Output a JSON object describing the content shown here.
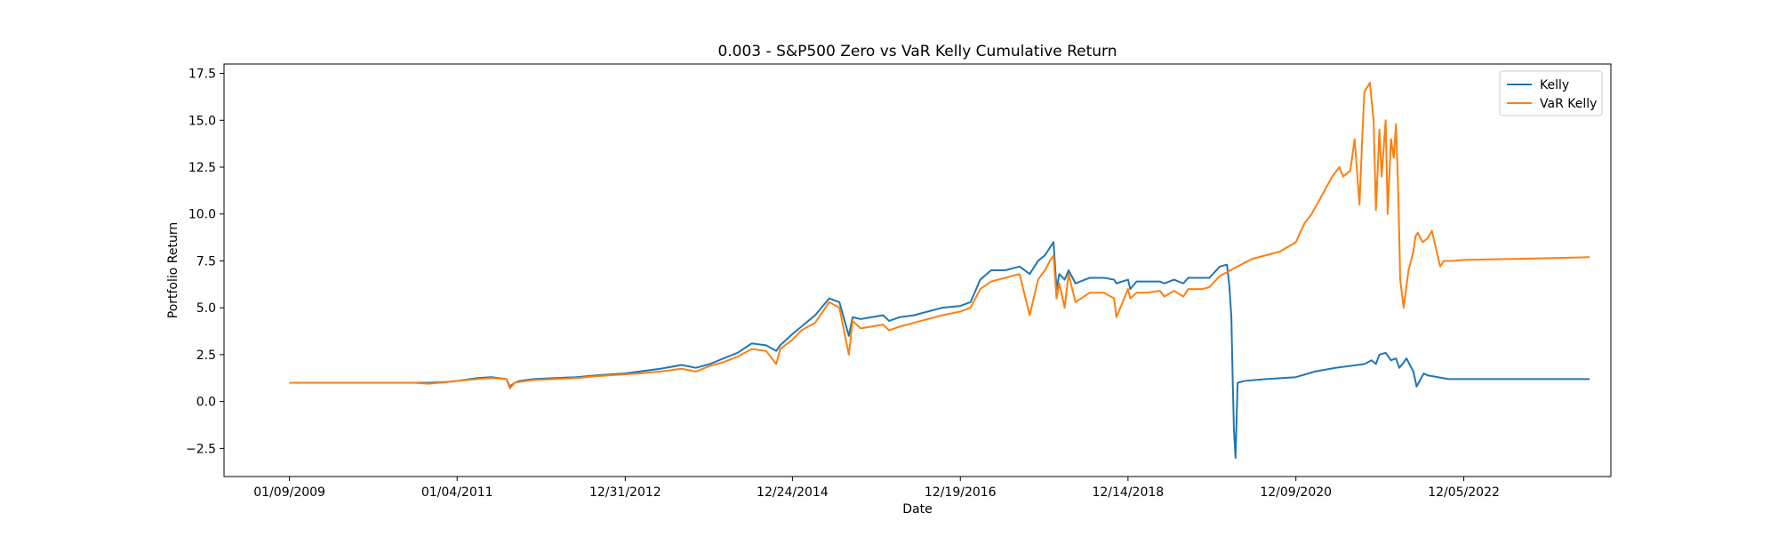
{
  "chart_data": {
    "type": "line",
    "title": "0.003 - S&P500 Zero vs VaR Kelly Cumulative Return",
    "xlabel": "Date",
    "ylabel": "Portfolio Return",
    "x_ticks": [
      "01/09/2009",
      "01/04/2011",
      "12/31/2012",
      "12/24/2014",
      "12/19/2016",
      "12/14/2018",
      "12/09/2020",
      "12/05/2022"
    ],
    "y_ticks": [
      "−2.5",
      "0.0",
      "2.5",
      "5.0",
      "7.5",
      "10.0",
      "12.5",
      "15.0",
      "17.5"
    ],
    "ylim": [
      -4.0,
      18.0
    ],
    "xlim": [
      "2008-04-01",
      "2024-09-01"
    ],
    "grid": false,
    "legend_position": "upper right",
    "series": [
      {
        "name": "Kelly",
        "color": "#1f77b4",
        "x": [
          "2009-01-09",
          "2009-09-01",
          "2010-05-01",
          "2010-07-01",
          "2010-09-01",
          "2010-12-01",
          "2011-01-04",
          "2011-04-01",
          "2011-06-01",
          "2011-08-05",
          "2011-08-20",
          "2011-09-10",
          "2011-10-01",
          "2011-12-01",
          "2012-03-01",
          "2012-06-01",
          "2012-09-01",
          "2012-12-31",
          "2013-03-01",
          "2013-06-01",
          "2013-09-01",
          "2013-11-01",
          "2014-01-01",
          "2014-03-01",
          "2014-05-01",
          "2014-07-01",
          "2014-09-01",
          "2014-10-15",
          "2014-11-01",
          "2014-12-24",
          "2015-02-01",
          "2015-04-01",
          "2015-06-01",
          "2015-07-15",
          "2015-08-25",
          "2015-09-10",
          "2015-10-15",
          "2015-12-01",
          "2016-01-20",
          "2016-02-15",
          "2016-04-01",
          "2016-06-01",
          "2016-08-01",
          "2016-10-01",
          "2016-12-19",
          "2017-02-01",
          "2017-03-15",
          "2017-05-01",
          "2017-07-01",
          "2017-09-01",
          "2017-10-15",
          "2017-11-20",
          "2017-12-20",
          "2018-01-10",
          "2018-01-26",
          "2018-02-08",
          "2018-02-20",
          "2018-03-15",
          "2018-04-01",
          "2018-05-01",
          "2018-07-01",
          "2018-09-01",
          "2018-10-15",
          "2018-10-25",
          "2018-12-14",
          "2018-12-24",
          "2019-01-20",
          "2019-03-01",
          "2019-05-01",
          "2019-05-20",
          "2019-07-01",
          "2019-08-10",
          "2019-09-01",
          "2019-11-01",
          "2019-12-01",
          "2020-01-15",
          "2020-02-15",
          "2020-02-25",
          "2020-03-05",
          "2020-03-10",
          "2020-03-16",
          "2020-03-23",
          "2020-04-01",
          "2020-05-01",
          "2020-08-01",
          "2020-12-09",
          "2021-03-01",
          "2021-06-01",
          "2021-08-01",
          "2021-10-01",
          "2021-11-01",
          "2021-11-20",
          "2021-12-05",
          "2022-01-01",
          "2022-01-24",
          "2022-02-15",
          "2022-03-01",
          "2022-03-15",
          "2022-04-01",
          "2022-05-01",
          "2022-05-15",
          "2022-06-15",
          "2022-07-01",
          "2022-08-15",
          "2022-10-01",
          "2022-12-05",
          "2023-06-01",
          "2024-01-01",
          "2024-06-01"
        ],
        "y": [
          1.0,
          1.0,
          1.0,
          1.0,
          1.0,
          1.05,
          1.1,
          1.25,
          1.3,
          1.2,
          0.8,
          1.0,
          1.1,
          1.2,
          1.25,
          1.3,
          1.4,
          1.5,
          1.6,
          1.75,
          1.95,
          1.8,
          2.0,
          2.3,
          2.6,
          3.1,
          3.0,
          2.7,
          3.0,
          3.6,
          4.0,
          4.6,
          5.5,
          5.3,
          3.5,
          4.5,
          4.4,
          4.5,
          4.6,
          4.3,
          4.5,
          4.6,
          4.8,
          5.0,
          5.1,
          5.3,
          6.5,
          7.0,
          7.0,
          7.2,
          6.8,
          7.5,
          7.8,
          8.2,
          8.5,
          6.0,
          6.8,
          6.5,
          7.0,
          6.3,
          6.6,
          6.6,
          6.5,
          6.3,
          6.5,
          6.0,
          6.4,
          6.4,
          6.4,
          6.3,
          6.5,
          6.3,
          6.6,
          6.6,
          6.6,
          7.2,
          7.3,
          6.2,
          4.5,
          1.5,
          -1.5,
          -3.0,
          1.0,
          1.1,
          1.2,
          1.3,
          1.6,
          1.8,
          1.9,
          2.0,
          2.2,
          2.0,
          2.5,
          2.6,
          2.2,
          2.3,
          1.8,
          2.0,
          2.3,
          1.6,
          0.8,
          1.5,
          1.4,
          1.3,
          1.2,
          1.2,
          1.2,
          1.2,
          1.2
        ]
      },
      {
        "name": "VaR Kelly",
        "color": "#ff7f0e",
        "x": [
          "2009-01-09",
          "2009-09-01",
          "2010-05-01",
          "2010-07-01",
          "2010-09-01",
          "2010-12-01",
          "2011-01-04",
          "2011-04-01",
          "2011-06-01",
          "2011-08-05",
          "2011-08-20",
          "2011-09-10",
          "2011-10-01",
          "2011-12-01",
          "2012-03-01",
          "2012-06-01",
          "2012-09-01",
          "2012-12-31",
          "2013-03-01",
          "2013-06-01",
          "2013-09-01",
          "2013-11-01",
          "2014-01-01",
          "2014-03-01",
          "2014-05-01",
          "2014-07-01",
          "2014-09-01",
          "2014-10-15",
          "2014-11-01",
          "2014-12-24",
          "2015-02-01",
          "2015-04-01",
          "2015-06-01",
          "2015-07-15",
          "2015-08-25",
          "2015-09-10",
          "2015-10-15",
          "2015-12-01",
          "2016-01-20",
          "2016-02-15",
          "2016-04-01",
          "2016-06-01",
          "2016-08-01",
          "2016-10-01",
          "2016-12-19",
          "2017-02-01",
          "2017-03-15",
          "2017-05-01",
          "2017-07-01",
          "2017-09-01",
          "2017-10-15",
          "2017-11-20",
          "2017-12-20",
          "2018-01-10",
          "2018-01-26",
          "2018-02-08",
          "2018-02-20",
          "2018-03-15",
          "2018-04-01",
          "2018-05-01",
          "2018-07-01",
          "2018-09-01",
          "2018-10-15",
          "2018-10-25",
          "2018-12-14",
          "2018-12-24",
          "2019-01-20",
          "2019-03-01",
          "2019-05-01",
          "2019-05-20",
          "2019-07-01",
          "2019-08-10",
          "2019-09-01",
          "2019-11-01",
          "2019-12-01",
          "2020-01-15",
          "2020-02-15",
          "2020-03-01",
          "2020-04-01",
          "2020-05-01",
          "2020-06-01",
          "2020-07-01",
          "2020-08-01",
          "2020-09-01",
          "2020-10-01",
          "2020-12-09",
          "2021-01-15",
          "2021-02-15",
          "2021-04-01",
          "2021-05-15",
          "2021-06-15",
          "2021-07-01",
          "2021-08-01",
          "2021-08-20",
          "2021-09-10",
          "2021-09-20",
          "2021-10-01",
          "2021-10-25",
          "2021-11-10",
          "2021-11-20",
          "2021-12-05",
          "2021-12-15",
          "2022-01-01",
          "2022-01-10",
          "2022-01-24",
          "2022-02-05",
          "2022-02-15",
          "2022-02-25",
          "2022-03-05",
          "2022-03-20",
          "2022-04-10",
          "2022-05-01",
          "2022-05-10",
          "2022-05-20",
          "2022-06-10",
          "2022-07-01",
          "2022-07-20",
          "2022-08-10",
          "2022-08-25",
          "2022-09-10",
          "2022-10-01",
          "2022-10-15",
          "2022-12-05",
          "2023-06-01",
          "2024-01-01",
          "2024-06-01"
        ],
        "y": [
          1.0,
          1.0,
          1.0,
          1.0,
          0.95,
          1.05,
          1.1,
          1.2,
          1.25,
          1.2,
          0.7,
          1.0,
          1.05,
          1.15,
          1.2,
          1.25,
          1.35,
          1.45,
          1.5,
          1.6,
          1.75,
          1.6,
          1.9,
          2.1,
          2.4,
          2.8,
          2.7,
          2.0,
          2.8,
          3.3,
          3.8,
          4.2,
          5.3,
          5.0,
          2.5,
          4.3,
          3.9,
          4.0,
          4.1,
          3.8,
          4.0,
          4.2,
          4.4,
          4.6,
          4.8,
          5.0,
          6.0,
          6.4,
          6.6,
          6.8,
          4.6,
          6.5,
          7.0,
          7.5,
          7.8,
          5.5,
          6.3,
          5.0,
          6.8,
          5.3,
          5.8,
          5.8,
          5.5,
          4.5,
          6.0,
          5.5,
          5.8,
          5.8,
          5.9,
          5.6,
          5.9,
          5.6,
          6.0,
          6.0,
          6.1,
          6.7,
          6.9,
          7.0,
          7.2,
          7.4,
          7.6,
          7.7,
          7.8,
          7.9,
          8.0,
          8.5,
          9.5,
          10.0,
          11.0,
          12.0,
          12.5,
          12.0,
          12.3,
          14.0,
          10.5,
          13.5,
          16.5,
          17.0,
          15.0,
          10.2,
          14.5,
          12.0,
          15.0,
          10.0,
          14.0,
          13.0,
          14.8,
          11.0,
          6.5,
          5.0,
          7.0,
          8.0,
          8.8,
          9.0,
          8.5,
          8.7,
          9.1,
          8.0,
          7.2,
          7.5,
          7.5,
          7.5,
          7.55,
          7.6,
          7.65,
          7.7
        ]
      }
    ]
  }
}
